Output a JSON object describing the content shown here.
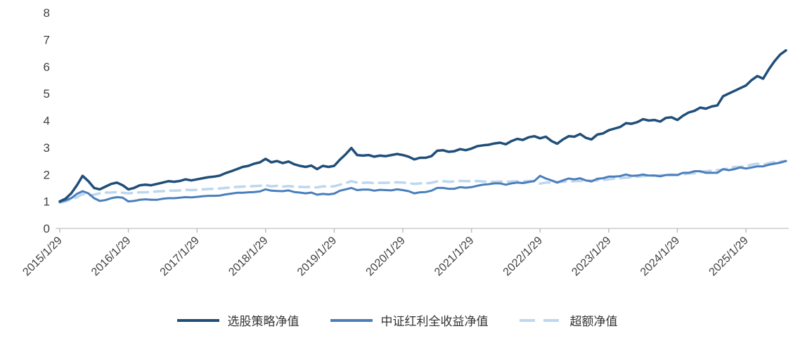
{
  "chart_data": {
    "type": "line",
    "title": "",
    "xlabel": "",
    "ylabel": "",
    "ylim": [
      0,
      8
    ],
    "yticks": [
      0,
      1,
      2,
      3,
      4,
      5,
      6,
      7,
      8
    ],
    "grid": false,
    "legend_position": "bottom",
    "axis_color": "#d9d9d9",
    "tick_color": "#bfbfbf",
    "label_color": "#404040",
    "x_label_ticks": [
      "2015/1/29",
      "2016/1/29",
      "2017/1/29",
      "2018/1/29",
      "2019/1/29",
      "2020/1/29",
      "2021/1/29",
      "2022/1/29",
      "2023/1/29",
      "2024/1/29",
      "2025/1/29"
    ],
    "points_per_year": 12,
    "series": [
      {
        "name": "选股策略净值",
        "key": "strategy-net-value",
        "color": "#1f4e79",
        "width": 3.5,
        "dash": null,
        "values": [
          1.0,
          1.1,
          1.3,
          1.6,
          1.95,
          1.75,
          1.5,
          1.45,
          1.55,
          1.65,
          1.7,
          1.6,
          1.45,
          1.5,
          1.6,
          1.62,
          1.6,
          1.65,
          1.7,
          1.75,
          1.73,
          1.76,
          1.82,
          1.78,
          1.82,
          1.86,
          1.9,
          1.92,
          1.96,
          2.05,
          2.12,
          2.2,
          2.28,
          2.32,
          2.4,
          2.45,
          2.58,
          2.45,
          2.5,
          2.42,
          2.48,
          2.38,
          2.32,
          2.28,
          2.33,
          2.2,
          2.32,
          2.28,
          2.32,
          2.55,
          2.75,
          2.98,
          2.72,
          2.7,
          2.72,
          2.66,
          2.7,
          2.68,
          2.72,
          2.76,
          2.72,
          2.66,
          2.56,
          2.62,
          2.62,
          2.68,
          2.88,
          2.9,
          2.84,
          2.86,
          2.94,
          2.9,
          2.96,
          3.05,
          3.08,
          3.1,
          3.15,
          3.18,
          3.12,
          3.24,
          3.32,
          3.28,
          3.38,
          3.42,
          3.34,
          3.4,
          3.24,
          3.14,
          3.3,
          3.42,
          3.4,
          3.5,
          3.36,
          3.3,
          3.48,
          3.52,
          3.64,
          3.7,
          3.76,
          3.9,
          3.88,
          3.94,
          4.05,
          4.0,
          4.02,
          3.96,
          4.1,
          4.12,
          4.02,
          4.18,
          4.3,
          4.36,
          4.48,
          4.44,
          4.52,
          4.56,
          4.9,
          5.0,
          5.1,
          5.2,
          5.3,
          5.5,
          5.65,
          5.55,
          5.9,
          6.2,
          6.45,
          6.6
        ]
      },
      {
        "name": "中证红利全收益净值",
        "key": "csi-dividend-total-return",
        "color": "#4a7ebb",
        "width": 3,
        "dash": null,
        "values": [
          0.98,
          1.04,
          1.12,
          1.28,
          1.38,
          1.3,
          1.12,
          1.02,
          1.05,
          1.12,
          1.16,
          1.14,
          1.0,
          1.02,
          1.06,
          1.08,
          1.06,
          1.06,
          1.1,
          1.12,
          1.12,
          1.14,
          1.16,
          1.15,
          1.17,
          1.19,
          1.21,
          1.21,
          1.22,
          1.26,
          1.29,
          1.32,
          1.32,
          1.34,
          1.35,
          1.37,
          1.45,
          1.4,
          1.39,
          1.38,
          1.41,
          1.35,
          1.33,
          1.3,
          1.33,
          1.25,
          1.28,
          1.26,
          1.29,
          1.4,
          1.45,
          1.5,
          1.42,
          1.44,
          1.44,
          1.4,
          1.43,
          1.42,
          1.41,
          1.45,
          1.42,
          1.38,
          1.3,
          1.34,
          1.35,
          1.4,
          1.5,
          1.5,
          1.47,
          1.47,
          1.53,
          1.51,
          1.53,
          1.58,
          1.62,
          1.64,
          1.67,
          1.67,
          1.62,
          1.67,
          1.7,
          1.68,
          1.72,
          1.76,
          1.95,
          1.85,
          1.78,
          1.7,
          1.78,
          1.85,
          1.82,
          1.86,
          1.78,
          1.74,
          1.84,
          1.86,
          1.92,
          1.92,
          1.94,
          2.0,
          1.95,
          1.96,
          2.0,
          1.96,
          1.96,
          1.93,
          1.98,
          1.98,
          1.98,
          2.06,
          2.06,
          2.12,
          2.12,
          2.06,
          2.06,
          2.06,
          2.2,
          2.16,
          2.2,
          2.26,
          2.22,
          2.26,
          2.3,
          2.3,
          2.36,
          2.4,
          2.44,
          2.5
        ]
      },
      {
        "name": "超额净值",
        "key": "excess-net-value",
        "color": "#bdd7ee",
        "width": 3.5,
        "dash": "14 9",
        "values": [
          0.95,
          1.0,
          1.08,
          1.15,
          1.28,
          1.22,
          1.25,
          1.3,
          1.33,
          1.33,
          1.35,
          1.32,
          1.3,
          1.32,
          1.34,
          1.34,
          1.35,
          1.37,
          1.38,
          1.4,
          1.4,
          1.41,
          1.43,
          1.42,
          1.43,
          1.45,
          1.46,
          1.47,
          1.48,
          1.5,
          1.52,
          1.54,
          1.55,
          1.56,
          1.57,
          1.58,
          1.6,
          1.56,
          1.58,
          1.55,
          1.57,
          1.55,
          1.54,
          1.53,
          1.54,
          1.52,
          1.56,
          1.55,
          1.56,
          1.62,
          1.68,
          1.75,
          1.7,
          1.69,
          1.7,
          1.68,
          1.69,
          1.69,
          1.7,
          1.71,
          1.7,
          1.68,
          1.65,
          1.67,
          1.67,
          1.69,
          1.74,
          1.75,
          1.73,
          1.74,
          1.76,
          1.75,
          1.75,
          1.76,
          1.74,
          1.73,
          1.73,
          1.74,
          1.73,
          1.74,
          1.75,
          1.74,
          1.76,
          1.74,
          1.66,
          1.7,
          1.7,
          1.72,
          1.73,
          1.74,
          1.75,
          1.76,
          1.77,
          1.78,
          1.78,
          1.79,
          1.82,
          1.85,
          1.86,
          1.88,
          1.9,
          1.92,
          1.94,
          1.95,
          1.96,
          1.97,
          1.99,
          2.0,
          1.98,
          2.0,
          2.04,
          2.04,
          2.08,
          2.12,
          2.14,
          2.16,
          2.18,
          2.24,
          2.28,
          2.28,
          2.32,
          2.36,
          2.4,
          2.36,
          2.42,
          2.46,
          2.48,
          2.5
        ]
      }
    ]
  }
}
